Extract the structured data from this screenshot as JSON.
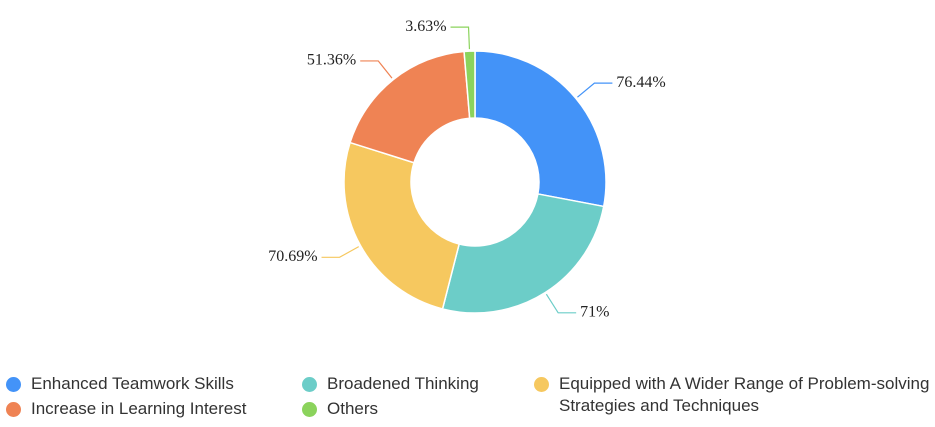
{
  "chart_data": {
    "type": "donut",
    "categories": [
      "Enhanced Teamwork Skills",
      "Broadened Thinking",
      "Equipped with A Wider Range of Problem-solving Strategies and Techniques",
      "Increase in Learning Interest",
      "Others"
    ],
    "values": [
      76.44,
      71,
      70.69,
      51.36,
      3.63
    ],
    "value_labels": [
      "76.44%",
      "71%",
      "70.69%",
      "51.36%",
      "3.63%"
    ],
    "colors": [
      "#4393f8",
      "#6ccdc8",
      "#f6c85f",
      "#ef8354",
      "#8bd35c"
    ]
  }
}
